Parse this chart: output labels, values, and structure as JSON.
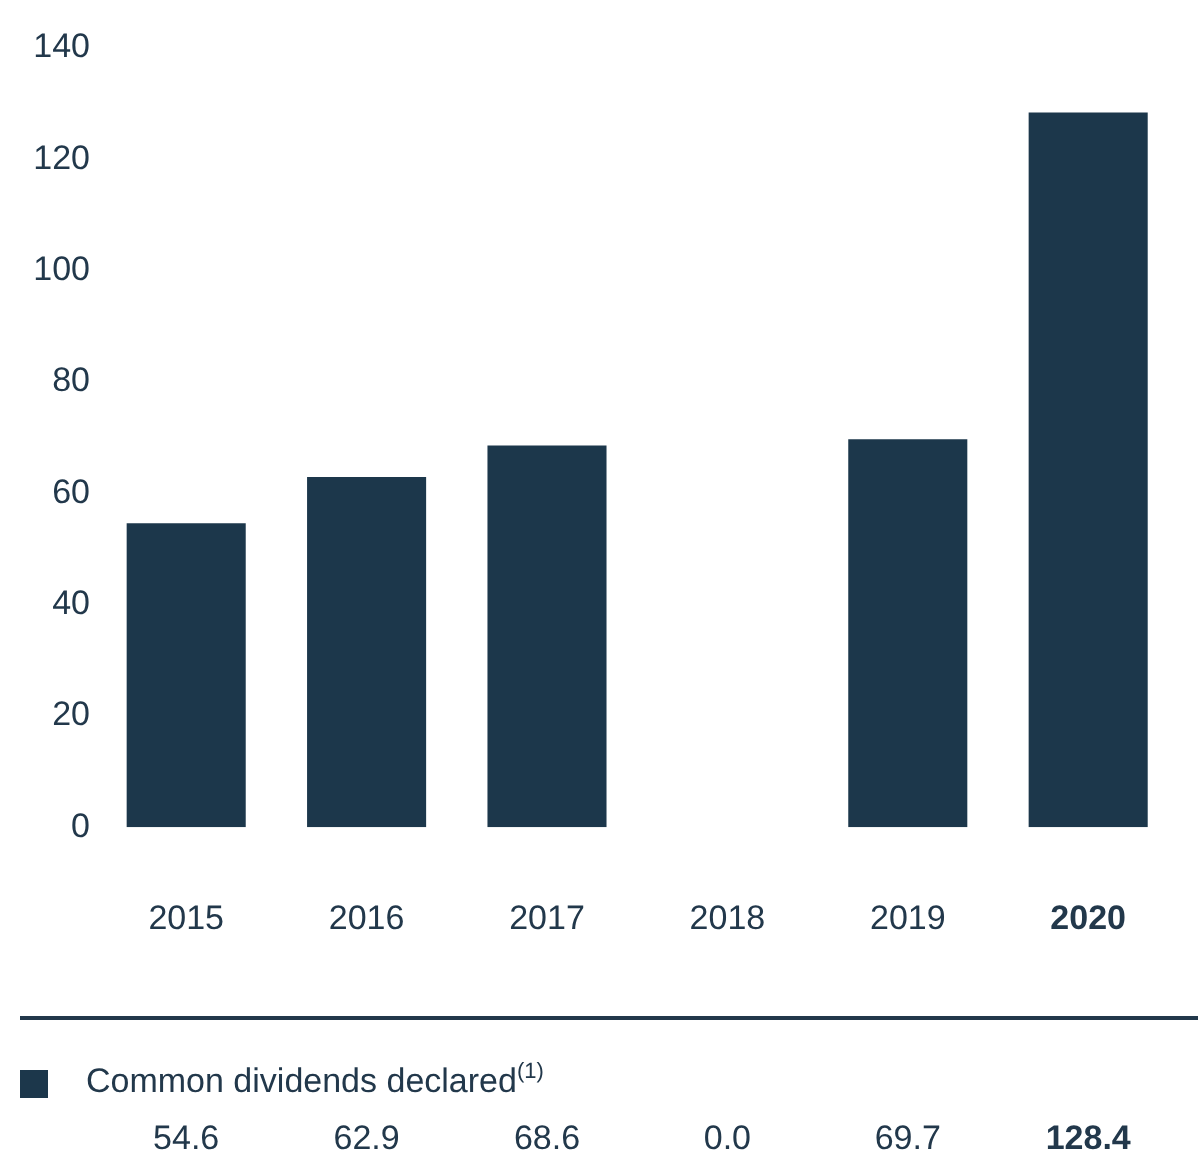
{
  "chart_data": {
    "type": "bar",
    "categories": [
      "2015",
      "2016",
      "2017",
      "2018",
      "2019",
      "2020"
    ],
    "series": [
      {
        "name": "Common dividends declared$^{(1)}$",
        "color": "#1c374b",
        "values": [
          54.6,
          62.9,
          68.6,
          0.0,
          69.7,
          128.4
        ],
        "value_labels": [
          "54.6",
          "62.9",
          "68.6",
          "0.0",
          "69.7",
          "128.4"
        ]
      }
    ],
    "ylim": [
      0,
      140
    ],
    "yticks": [
      0,
      20,
      40,
      60,
      80,
      100,
      120,
      140
    ],
    "grid": false,
    "legend": "bottom"
  }
}
